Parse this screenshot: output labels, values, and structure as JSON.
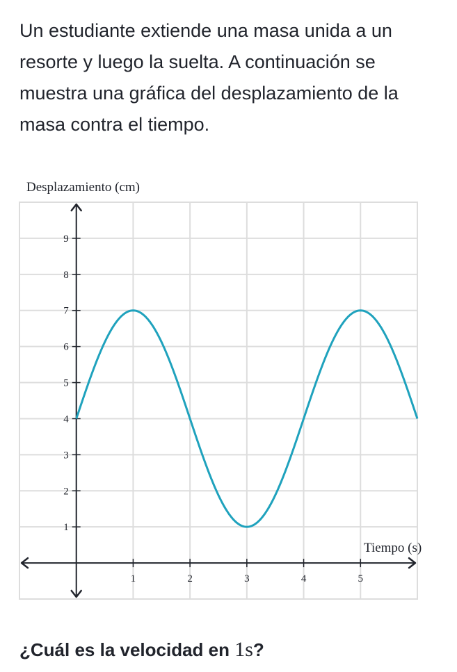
{
  "intro_text": "Un estudiante extiende una masa unida a un resorte y luego la suelta. A continuación se muestra una gráfica del desplazamiento de la masa contra el tiempo.",
  "question": {
    "prefix": "¿Cuál es la velocidad en ",
    "value": "1",
    "unit": "s",
    "suffix": "?"
  },
  "chart_data": {
    "type": "line",
    "title": "",
    "xlabel": "Tiempo (s)",
    "ylabel": "Desplazamiento (cm)",
    "xlim": [
      -1,
      6
    ],
    "ylim": [
      -1,
      10
    ],
    "x_ticks": [
      1,
      2,
      3,
      4,
      5
    ],
    "y_ticks": [
      1,
      2,
      3,
      4,
      5,
      6,
      7,
      8,
      9
    ],
    "grid": true,
    "series": [
      {
        "color": "#1fa2bd",
        "function": "4 + 3*sin(pi*t/2)",
        "x": [
          0,
          0.5,
          1,
          1.5,
          2,
          2.5,
          3,
          3.5,
          4,
          4.5,
          5,
          5.5,
          6
        ],
        "y": [
          4,
          6.12,
          7,
          6.12,
          4,
          1.88,
          1,
          1.88,
          4,
          6.12,
          7,
          6.12,
          4
        ]
      }
    ],
    "colors": {
      "grid": "#dddddd",
      "axis": "#21242c",
      "curve": "#1fa2bd"
    }
  }
}
